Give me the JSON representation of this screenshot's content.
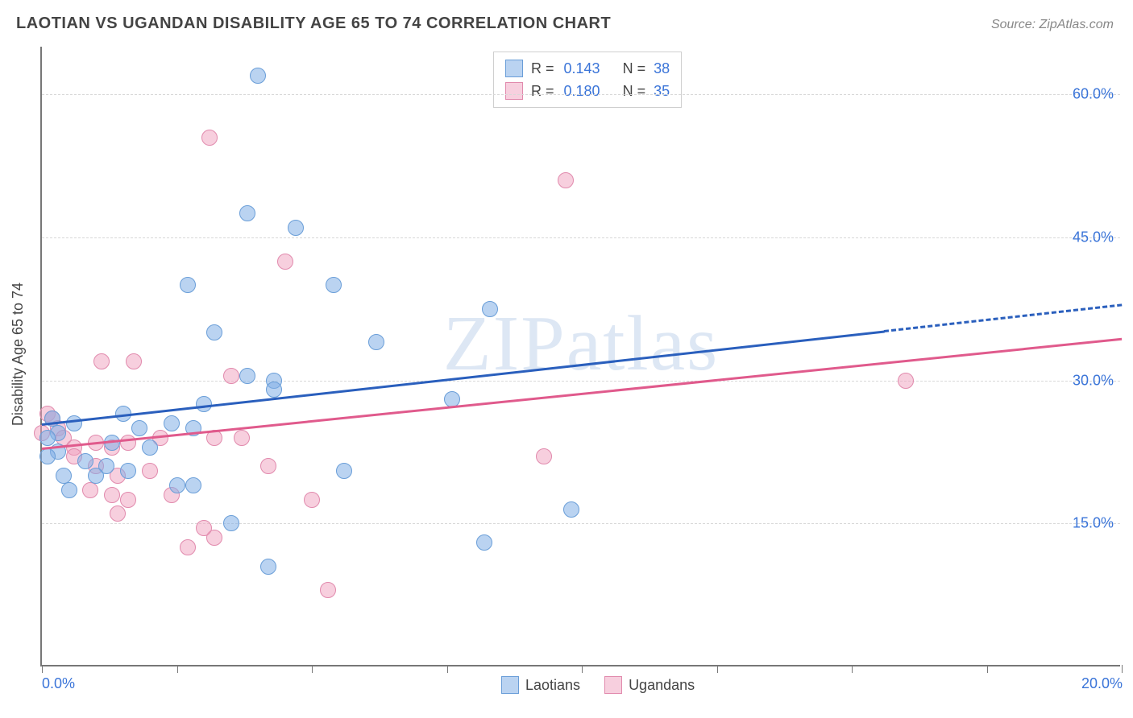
{
  "title": "LAOTIAN VS UGANDAN DISABILITY AGE 65 TO 74 CORRELATION CHART",
  "source": "Source: ZipAtlas.com",
  "watermark": "ZIPatlas",
  "ylabel": "Disability Age 65 to 74",
  "chart": {
    "type": "scatter",
    "background_color": "#ffffff",
    "grid_color": "#d8d8d8",
    "axis_color": "#777777",
    "tick_label_color": "#3a74d8",
    "label_color": "#444444",
    "label_fontsize": 18,
    "title_fontsize": 20,
    "xlim": [
      0,
      20
    ],
    "ylim": [
      0,
      65
    ],
    "x_ticks": [
      0,
      2.5,
      5,
      7.5,
      10,
      12.5,
      15,
      17.5,
      20
    ],
    "x_tick_labels": {
      "0": "0.0%",
      "20": "20.0%"
    },
    "y_ticks": [
      15,
      30,
      45,
      60
    ],
    "y_tick_labels": {
      "15": "15.0%",
      "30": "30.0%",
      "45": "45.0%",
      "60": "60.0%"
    },
    "marker_size": 20,
    "series": [
      {
        "name": "Laotians",
        "fill_color": "rgba(130,175,230,0.55)",
        "stroke_color": "#6a9ed8",
        "trend_color": "#2a5fbd",
        "trend_width": 3,
        "trend_dash_end": true,
        "trend": {
          "x1": 0,
          "y1": 25.5,
          "x2": 20,
          "y2": 38
        },
        "r_label": "R =",
        "r_value": "0.143",
        "n_label": "N =",
        "n_value": "38",
        "points": [
          {
            "x": 4.0,
            "y": 62.0
          },
          {
            "x": 3.8,
            "y": 47.5
          },
          {
            "x": 4.7,
            "y": 46.0
          },
          {
            "x": 2.7,
            "y": 40.0
          },
          {
            "x": 5.4,
            "y": 40.0
          },
          {
            "x": 8.3,
            "y": 37.5
          },
          {
            "x": 3.2,
            "y": 35.0
          },
          {
            "x": 6.2,
            "y": 34.0
          },
          {
            "x": 3.8,
            "y": 30.5
          },
          {
            "x": 4.3,
            "y": 30.0
          },
          {
            "x": 4.3,
            "y": 29.0
          },
          {
            "x": 7.6,
            "y": 28.0
          },
          {
            "x": 1.5,
            "y": 26.5
          },
          {
            "x": 2.4,
            "y": 25.5
          },
          {
            "x": 2.8,
            "y": 25.0
          },
          {
            "x": 0.3,
            "y": 24.5
          },
          {
            "x": 0.3,
            "y": 22.5
          },
          {
            "x": 0.8,
            "y": 21.5
          },
          {
            "x": 1.2,
            "y": 21.0
          },
          {
            "x": 0.4,
            "y": 20.0
          },
          {
            "x": 1.0,
            "y": 20.0
          },
          {
            "x": 5.6,
            "y": 20.5
          },
          {
            "x": 2.5,
            "y": 19.0
          },
          {
            "x": 2.8,
            "y": 19.0
          },
          {
            "x": 9.8,
            "y": 16.5
          },
          {
            "x": 3.5,
            "y": 15.0
          },
          {
            "x": 8.2,
            "y": 13.0
          },
          {
            "x": 4.2,
            "y": 10.5
          },
          {
            "x": 1.3,
            "y": 23.5
          },
          {
            "x": 0.6,
            "y": 25.5
          },
          {
            "x": 0.2,
            "y": 26.0
          },
          {
            "x": 0.1,
            "y": 24.0
          },
          {
            "x": 0.1,
            "y": 22.0
          },
          {
            "x": 2.0,
            "y": 23.0
          },
          {
            "x": 1.6,
            "y": 20.5
          },
          {
            "x": 0.5,
            "y": 18.5
          },
          {
            "x": 1.8,
            "y": 25.0
          },
          {
            "x": 3.0,
            "y": 27.5
          }
        ]
      },
      {
        "name": "Ugandans",
        "fill_color": "rgba(240,160,190,0.5)",
        "stroke_color": "#e18aad",
        "trend_color": "#e05a8c",
        "trend_width": 3,
        "trend_dash_end": false,
        "trend": {
          "x1": 0,
          "y1": 23.0,
          "x2": 20,
          "y2": 34.5
        },
        "r_label": "R =",
        "r_value": "0.180",
        "n_label": "N =",
        "n_value": "35",
        "points": [
          {
            "x": 3.1,
            "y": 55.5
          },
          {
            "x": 9.7,
            "y": 51.0
          },
          {
            "x": 4.5,
            "y": 42.5
          },
          {
            "x": 1.1,
            "y": 32.0
          },
          {
            "x": 1.7,
            "y": 32.0
          },
          {
            "x": 16.0,
            "y": 30.0
          },
          {
            "x": 3.5,
            "y": 30.5
          },
          {
            "x": 0.1,
            "y": 26.5
          },
          {
            "x": 0.2,
            "y": 26.0
          },
          {
            "x": 0.3,
            "y": 25.0
          },
          {
            "x": 0.4,
            "y": 24.0
          },
          {
            "x": 0.6,
            "y": 23.0
          },
          {
            "x": 0.6,
            "y": 22.0
          },
          {
            "x": 1.0,
            "y": 23.5
          },
          {
            "x": 1.0,
            "y": 21.0
          },
          {
            "x": 1.3,
            "y": 23.0
          },
          {
            "x": 1.4,
            "y": 20.0
          },
          {
            "x": 1.6,
            "y": 23.5
          },
          {
            "x": 2.0,
            "y": 20.5
          },
          {
            "x": 2.2,
            "y": 24.0
          },
          {
            "x": 3.2,
            "y": 24.0
          },
          {
            "x": 3.7,
            "y": 24.0
          },
          {
            "x": 4.2,
            "y": 21.0
          },
          {
            "x": 9.3,
            "y": 22.0
          },
          {
            "x": 0.9,
            "y": 18.5
          },
          {
            "x": 1.3,
            "y": 18.0
          },
          {
            "x": 1.6,
            "y": 17.5
          },
          {
            "x": 2.4,
            "y": 18.0
          },
          {
            "x": 5.0,
            "y": 17.5
          },
          {
            "x": 1.4,
            "y": 16.0
          },
          {
            "x": 3.2,
            "y": 13.5
          },
          {
            "x": 2.7,
            "y": 12.5
          },
          {
            "x": 5.3,
            "y": 8.0
          },
          {
            "x": 3.0,
            "y": 14.5
          },
          {
            "x": 0.0,
            "y": 24.5
          }
        ]
      }
    ]
  },
  "legend_bottom": [
    {
      "label": "Laotians",
      "fill": "rgba(130,175,230,0.55)",
      "stroke": "#6a9ed8"
    },
    {
      "label": "Ugandans",
      "fill": "rgba(240,160,190,0.5)",
      "stroke": "#e18aad"
    }
  ]
}
